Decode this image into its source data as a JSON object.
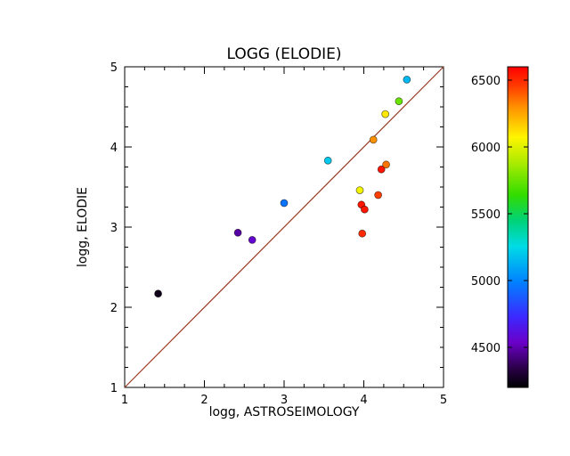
{
  "figure": {
    "background": "#ffffff",
    "frame_color": "#000000",
    "text_color": "#000000"
  },
  "chart_data": {
    "type": "scatter",
    "title": "LOGG (ELODIE)",
    "xlabel": "logg, ASTROSEIMOLOGY",
    "ylabel": "logg, ELODIE",
    "xlim": [
      1,
      5
    ],
    "ylim": [
      1,
      5
    ],
    "xticks": [
      1,
      2,
      3,
      4,
      5
    ],
    "yticks": [
      1,
      2,
      3,
      4,
      5
    ],
    "minor_tick_step": 0.25,
    "grid": false,
    "identity_line": {
      "from": [
        1,
        1
      ],
      "to": [
        5,
        5
      ],
      "color": "#9a3b26"
    },
    "marker": {
      "shape": "circle",
      "radius": 4,
      "edge_color": "rgba(0,0,0,0.55)"
    },
    "colorbar": {
      "min": 4200,
      "max": 6600,
      "ticks": [
        4500,
        5000,
        5500,
        6000,
        6500
      ],
      "orientation": "vertical",
      "position": "right"
    },
    "colormap_stops": [
      {
        "t": 0.0,
        "color": "#000000"
      },
      {
        "t": 0.06,
        "color": "#2a0048"
      },
      {
        "t": 0.14,
        "color": "#6a00c8"
      },
      {
        "t": 0.22,
        "color": "#3c28ff"
      },
      {
        "t": 0.33,
        "color": "#0082ff"
      },
      {
        "t": 0.44,
        "color": "#00dce6"
      },
      {
        "t": 0.52,
        "color": "#00d278"
      },
      {
        "t": 0.6,
        "color": "#32dc00"
      },
      {
        "t": 0.7,
        "color": "#aaeb00"
      },
      {
        "t": 0.78,
        "color": "#fff500"
      },
      {
        "t": 0.87,
        "color": "#ff9600"
      },
      {
        "t": 0.94,
        "color": "#ff3c00"
      },
      {
        "t": 1.0,
        "color": "#ff0000"
      }
    ],
    "points": [
      {
        "x": 1.42,
        "y": 2.17,
        "teff": 4250
      },
      {
        "x": 2.42,
        "y": 2.93,
        "teff": 4480
      },
      {
        "x": 2.6,
        "y": 2.84,
        "teff": 4560
      },
      {
        "x": 3.0,
        "y": 3.3,
        "teff": 4950
      },
      {
        "x": 3.55,
        "y": 3.83,
        "teff": 5200
      },
      {
        "x": 3.95,
        "y": 3.46,
        "teff": 6050
      },
      {
        "x": 3.97,
        "y": 3.28,
        "teff": 6550
      },
      {
        "x": 4.01,
        "y": 3.22,
        "teff": 6550
      },
      {
        "x": 3.98,
        "y": 2.92,
        "teff": 6500
      },
      {
        "x": 4.18,
        "y": 3.4,
        "teff": 6450
      },
      {
        "x": 4.22,
        "y": 3.72,
        "teff": 6550
      },
      {
        "x": 4.28,
        "y": 3.78,
        "teff": 6350
      },
      {
        "x": 4.12,
        "y": 4.09,
        "teff": 6300
      },
      {
        "x": 4.27,
        "y": 4.41,
        "teff": 6100
      },
      {
        "x": 4.44,
        "y": 4.57,
        "teff": 5750
      },
      {
        "x": 4.54,
        "y": 4.84,
        "teff": 5150
      }
    ]
  }
}
